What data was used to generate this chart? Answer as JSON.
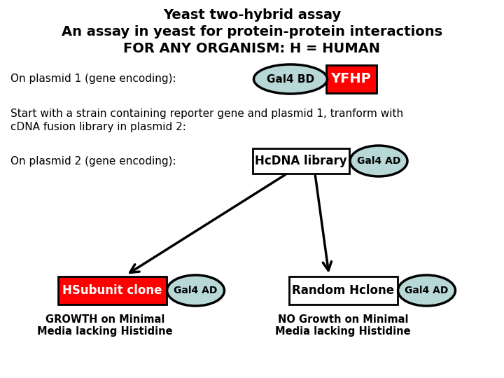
{
  "title_line1": "Yeast two-hybrid assay",
  "title_line2": "An assay in yeast for protein-protein interactions",
  "title_line3": "FOR ANY ORGANISM: H = HUMAN",
  "bg_color": "#ffffff",
  "ellipse_fill": "#b8d8d8",
  "ellipse_edge": "#000000",
  "red_fill": "#ff0000",
  "white_fill": "#ffffff",
  "text_on_red": "#ffffff",
  "text_black": "#000000",
  "plasmid1_label": "On plasmid 1 (gene encoding):",
  "gal4bd_text": "Gal4 BD",
  "yfhp_text": "YFHP",
  "middle_text_line1": "Start with a strain containing reporter gene and plasmid 1, tranform with",
  "middle_text_line2": "cDNA fusion library in plasmid 2:",
  "plasmid2_label": "On plasmid 2 (gene encoding):",
  "hcdna_text": "HcDNA library",
  "gal4ad_text": "Gal4 AD",
  "hsubunit_text": "HSubunit clone",
  "gal4ad2_text": "Gal4 AD",
  "random_text": "Random Hclone",
  "gal4ad3_text": "Gal4 AD",
  "growth_line1": "GROWTH on Minimal",
  "growth_line2": "Media lacking Histidine",
  "nogrowth_line1": "NO Growth on Minimal",
  "nogrowth_line2": "Media lacking Histidine"
}
